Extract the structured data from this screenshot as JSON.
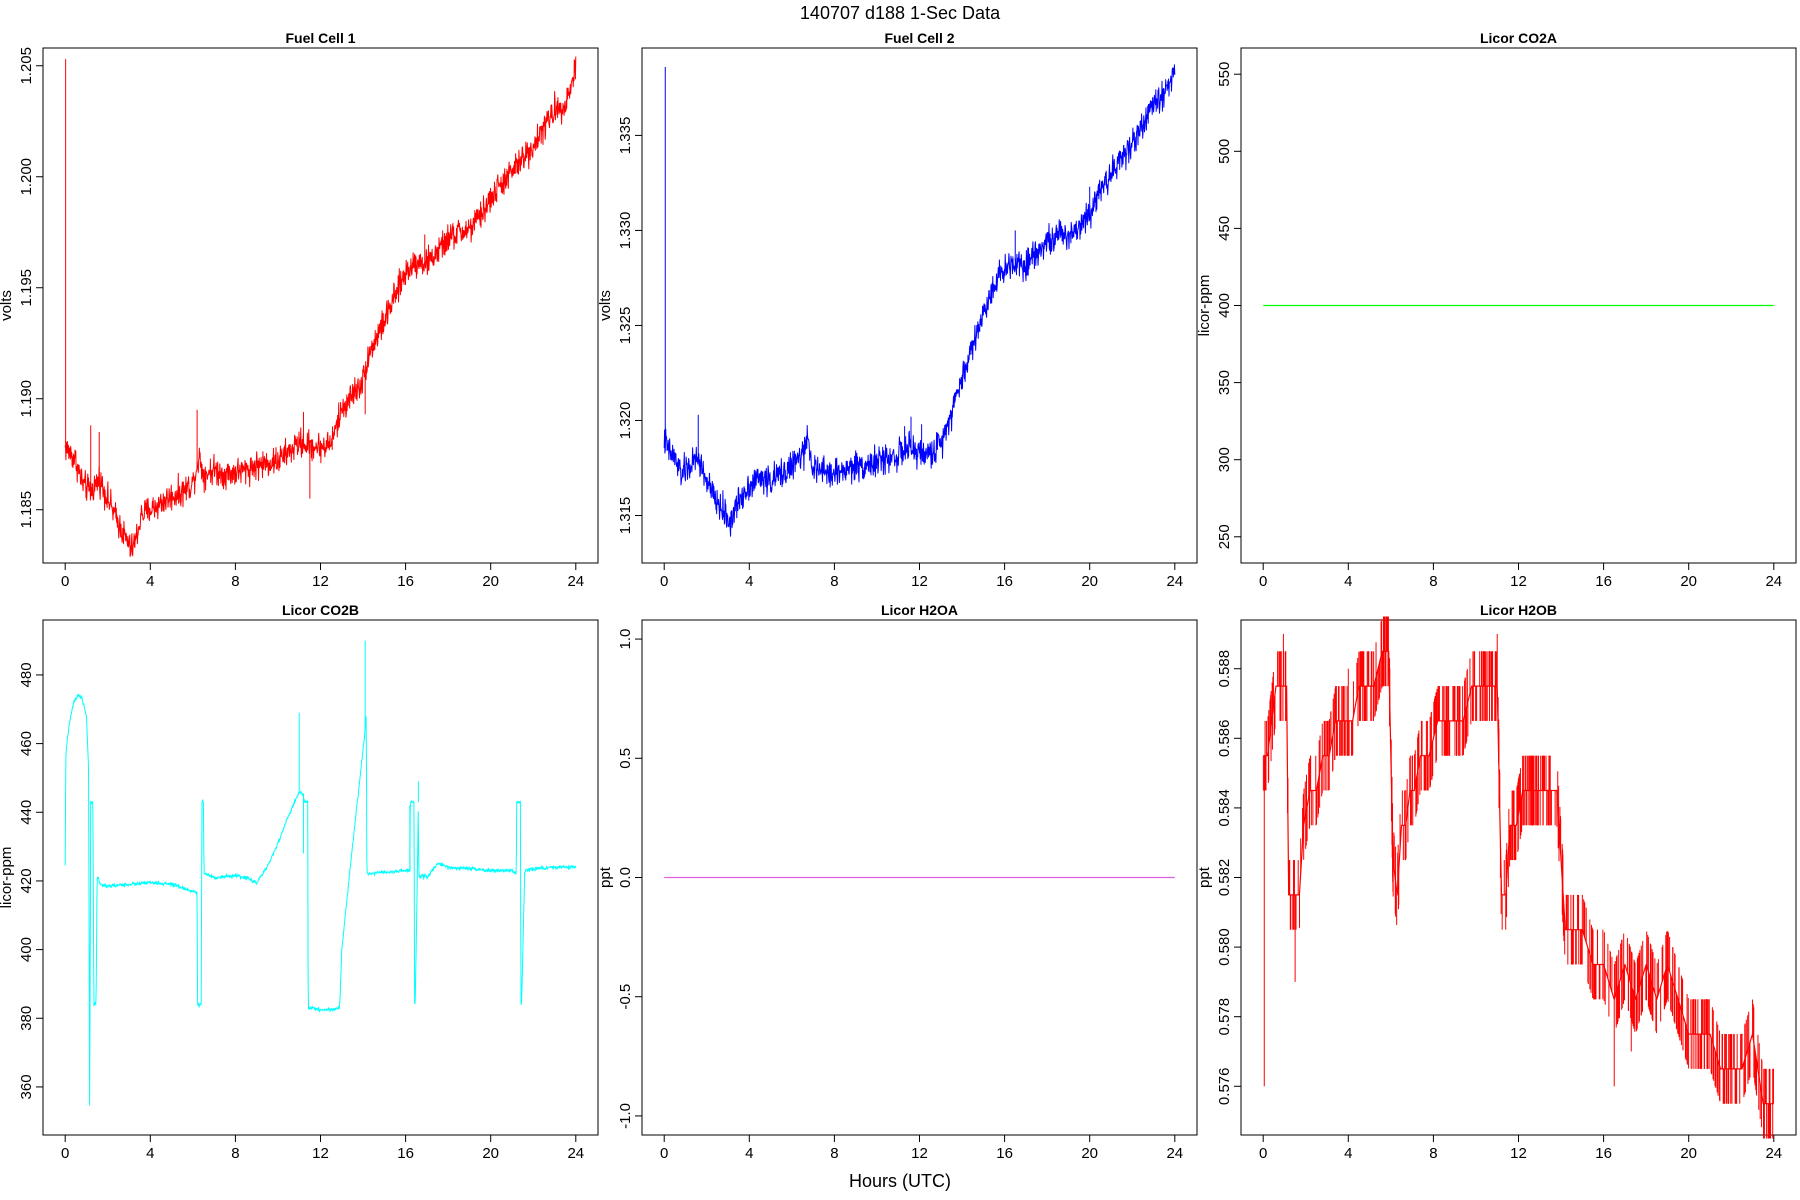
{
  "figure": {
    "title": "140707   d188   1-Sec Data",
    "xlabel": "Hours (UTC)"
  },
  "chart_data": [
    {
      "type": "line",
      "title": "Fuel Cell 1",
      "ylabel": "volts",
      "color": "#ff0000",
      "xlim": [
        0,
        24
      ],
      "xticks": [
        0,
        4,
        8,
        12,
        16,
        20,
        24
      ],
      "ylim": [
        1.1826,
        1.2058
      ],
      "yticks": [
        "1.185",
        "1.190",
        "1.195",
        "1.200",
        "1.205"
      ],
      "noise": 0.00045,
      "spikes": [
        [
          0.02,
          1.2053
        ],
        [
          1.2,
          1.1888
        ],
        [
          1.6,
          1.1885
        ],
        [
          6.2,
          1.1895
        ],
        [
          11.5,
          1.1855
        ],
        [
          11.2,
          1.1894
        ],
        [
          14.1,
          1.1893
        ],
        [
          16.9,
          1.1974
        ],
        [
          21.3,
          1.2001
        ],
        [
          21.8,
          1.2013
        ],
        [
          22.0,
          1.2015
        ]
      ],
      "series": [
        {
          "x": [
            0.0,
            0.2,
            0.5,
            0.8,
            1.2,
            1.6,
            2.0,
            2.4,
            2.8,
            3.1,
            3.3,
            3.6,
            4.0,
            4.5,
            5.0,
            5.5,
            6.0,
            6.3,
            6.5,
            7.0,
            7.5,
            8.0,
            8.5,
            9.0,
            9.5,
            10.0,
            10.5,
            11.0,
            11.5,
            12.0,
            12.5,
            13.0,
            13.5,
            14.0,
            14.2,
            14.5,
            15.0,
            15.5,
            16.0,
            16.5,
            17.0,
            17.5,
            18.0,
            18.5,
            19.0,
            19.5,
            20.0,
            20.5,
            21.0,
            21.5,
            22.0,
            22.5,
            23.0,
            23.5,
            23.8,
            24.0
          ],
          "y": [
            1.1878,
            1.1876,
            1.1872,
            1.1862,
            1.1858,
            1.1864,
            1.1855,
            1.1846,
            1.1838,
            1.1832,
            1.1836,
            1.1848,
            1.185,
            1.1853,
            1.1856,
            1.1858,
            1.1862,
            1.1874,
            1.1866,
            1.1868,
            1.1866,
            1.1867,
            1.1868,
            1.187,
            1.1871,
            1.1872,
            1.1876,
            1.188,
            1.1879,
            1.1878,
            1.188,
            1.1895,
            1.1902,
            1.1908,
            1.1918,
            1.1925,
            1.1935,
            1.1946,
            1.1957,
            1.1962,
            1.1961,
            1.1966,
            1.1972,
            1.1975,
            1.1976,
            1.1982,
            1.199,
            1.1997,
            1.2002,
            1.2008,
            1.2014,
            1.2022,
            1.203,
            1.2033,
            1.2041,
            1.2051
          ]
        }
      ]
    },
    {
      "type": "line",
      "title": "Fuel Cell 2",
      "ylabel": "volts",
      "color": "#0000ff",
      "xlim": [
        0,
        24
      ],
      "xticks": [
        0,
        4,
        8,
        12,
        16,
        20,
        24
      ],
      "ylim": [
        1.3125,
        1.3396
      ],
      "yticks": [
        "1.315",
        "1.320",
        "1.325",
        "1.330",
        "1.335"
      ],
      "noise": 0.00055,
      "spikes": [
        [
          0.05,
          1.3386
        ],
        [
          1.6,
          1.3203
        ],
        [
          11.3,
          1.3197
        ],
        [
          11.6,
          1.3202
        ],
        [
          12.1,
          1.3198
        ],
        [
          16.5,
          1.33
        ],
        [
          20.0,
          1.3323
        ],
        [
          21.6,
          1.3345
        ]
      ],
      "series": [
        {
          "x": [
            0.0,
            0.2,
            0.5,
            0.8,
            1.2,
            1.6,
            2.0,
            2.4,
            2.8,
            3.1,
            3.3,
            3.6,
            4.0,
            4.5,
            5.0,
            5.5,
            6.0,
            6.5,
            6.8,
            7.0,
            7.5,
            8.0,
            8.5,
            9.0,
            9.5,
            10.0,
            10.5,
            11.0,
            11.5,
            12.0,
            12.5,
            13.0,
            13.5,
            14.0,
            14.5,
            15.0,
            15.5,
            16.0,
            16.5,
            17.0,
            17.5,
            18.0,
            18.5,
            19.0,
            19.5,
            20.0,
            20.5,
            21.0,
            21.5,
            22.0,
            22.5,
            23.0,
            23.5,
            24.0
          ],
          "y": [
            1.319,
            1.3184,
            1.318,
            1.3172,
            1.3176,
            1.318,
            1.3168,
            1.3158,
            1.3152,
            1.3146,
            1.3152,
            1.316,
            1.3166,
            1.317,
            1.3168,
            1.3172,
            1.3176,
            1.3182,
            1.319,
            1.3174,
            1.3173,
            1.3172,
            1.3174,
            1.3176,
            1.3177,
            1.3178,
            1.318,
            1.3182,
            1.3185,
            1.3183,
            1.3182,
            1.3188,
            1.3205,
            1.3222,
            1.324,
            1.3256,
            1.3272,
            1.328,
            1.3284,
            1.3282,
            1.329,
            1.3294,
            1.3297,
            1.3298,
            1.3302,
            1.331,
            1.3322,
            1.333,
            1.3338,
            1.3346,
            1.3356,
            1.3366,
            1.3372,
            1.3385
          ]
        }
      ]
    },
    {
      "type": "line",
      "title": "Licor CO2A",
      "ylabel": "licor-ppm",
      "color": "#00ff00",
      "xlim": [
        0,
        24
      ],
      "xticks": [
        0,
        4,
        8,
        12,
        16,
        20,
        24
      ],
      "ylim": [
        233,
        567
      ],
      "yticks": [
        "250",
        "300",
        "350",
        "400",
        "450",
        "500",
        "550"
      ],
      "noise": 0,
      "spikes": [],
      "series": [
        {
          "x": [
            0,
            24
          ],
          "y": [
            400,
            400
          ]
        }
      ]
    },
    {
      "type": "line",
      "title": "Licor CO2B",
      "ylabel": "licor-ppm",
      "color": "#00ffff",
      "xlim": [
        0,
        24
      ],
      "xticks": [
        0,
        4,
        8,
        12,
        16,
        20,
        24
      ],
      "ylim": [
        346,
        496
      ],
      "yticks": [
        "360",
        "380",
        "400",
        "420",
        "440",
        "460",
        "480"
      ],
      "noise": 0.4,
      "spikes": [
        [
          11.0,
          469
        ],
        [
          11.2,
          428
        ],
        [
          14.1,
          490
        ],
        [
          16.6,
          449
        ],
        [
          16.2,
          442
        ]
      ],
      "series": [
        {
          "x": [
            0.0,
            0.02,
            0.04,
            0.2,
            0.4,
            0.6,
            0.8,
            1.0,
            1.1,
            1.15,
            1.2,
            1.22,
            1.25,
            1.3,
            1.35,
            1.4,
            1.42,
            1.45,
            1.5,
            1.55,
            1.6,
            1.62,
            2.0,
            3.0,
            4.0,
            5.0,
            6.0,
            6.2,
            6.22,
            6.25,
            6.4,
            6.42,
            6.45,
            6.5,
            6.52,
            6.6,
            7.0,
            8.0,
            8.5,
            9.0,
            9.5,
            10.0,
            10.5,
            11.0,
            11.2,
            11.22,
            11.25,
            11.4,
            11.42,
            11.45,
            11.6,
            12.0,
            12.5,
            12.9,
            13.0,
            13.5,
            14.0,
            14.15,
            14.18,
            14.2,
            15.0,
            16.0,
            16.2,
            16.22,
            16.25,
            16.4,
            16.42,
            16.45,
            16.55,
            16.6,
            16.62,
            16.65,
            16.8,
            16.85,
            16.9,
            17.0,
            17.5,
            18.0,
            19.0,
            20.0,
            21.0,
            21.2,
            21.22,
            21.25,
            21.4,
            21.42,
            21.45,
            21.6,
            22.0,
            23.0,
            24.0
          ],
          "y": [
            424,
            450,
            458,
            466,
            472,
            474,
            473,
            468,
            452,
            352,
            443,
            443,
            443,
            443,
            384,
            384,
            384,
            384,
            421,
            421,
            420,
            419,
            418.5,
            419,
            419.5,
            419,
            417,
            416.5,
            384,
            384,
            384,
            443,
            443,
            443,
            422,
            422,
            421,
            421.5,
            421,
            419.5,
            424,
            431,
            439,
            446,
            445,
            443,
            443,
            443,
            383,
            383,
            383,
            382.5,
            382.5,
            383,
            400,
            430,
            458,
            468,
            422.5,
            422,
            422.5,
            423,
            423,
            443,
            443,
            443,
            384,
            384,
            420,
            443,
            421,
            421,
            422,
            421,
            422,
            421,
            425,
            424,
            423.5,
            423,
            423,
            422,
            443,
            443,
            443,
            384,
            384,
            423,
            423.5,
            424,
            424
          ]
        }
      ]
    },
    {
      "type": "line",
      "title": "Licor H2OA",
      "ylabel": "ppt",
      "color": "#e060e0",
      "xlim": [
        0,
        24
      ],
      "xticks": [
        0,
        4,
        8,
        12,
        16,
        20,
        24
      ],
      "ylim": [
        -1.08,
        1.08
      ],
      "yticks": [
        "-1.0",
        "-0.5",
        "0.0",
        "0.5",
        "1.0"
      ],
      "noise": 0,
      "spikes": [],
      "series": [
        {
          "x": [
            0,
            24
          ],
          "y": [
            0,
            0
          ]
        }
      ]
    },
    {
      "type": "line",
      "title": "Licor H2OB",
      "ylabel": "ppt",
      "color": "#ff0000",
      "xlim": [
        0,
        24
      ],
      "xticks": [
        0,
        4,
        8,
        12,
        16,
        20,
        24
      ],
      "ylim": [
        0.5746,
        0.5894
      ],
      "yticks": [
        "0.576",
        "0.578",
        "0.580",
        "0.582",
        "0.584",
        "0.586",
        "0.588"
      ],
      "noise": 0,
      "spikes": [
        [
          0.05,
          0.576
        ],
        [
          1.5,
          0.579
        ],
        [
          0.95,
          0.589
        ],
        [
          4.0,
          0.588
        ],
        [
          11.0,
          0.589
        ],
        [
          16.5,
          0.576
        ],
        [
          17.3,
          0.577
        ]
      ],
      "series": [
        {
          "x": [
            0.0,
            0.2,
            0.4,
            0.6,
            0.9,
            1.1,
            1.2,
            1.3,
            1.7,
            1.9,
            2.2,
            2.5,
            2.8,
            3.1,
            3.4,
            3.8,
            4.2,
            4.5,
            4.9,
            5.2,
            5.6,
            5.9,
            6.1,
            6.3,
            6.5,
            6.7,
            6.9,
            7.1,
            7.4,
            7.8,
            8.2,
            8.6,
            9.0,
            9.4,
            9.8,
            10.2,
            10.6,
            11.0,
            11.2,
            11.4,
            11.6,
            11.9,
            12.2,
            12.5,
            12.8,
            13.1,
            13.4,
            13.8,
            14.2,
            14.5,
            15.0,
            15.5,
            16.0,
            16.5,
            17.0,
            17.5,
            18.0,
            18.5,
            19.0,
            19.5,
            20.0,
            20.5,
            21.0,
            21.5,
            22.0,
            22.5,
            23.0,
            23.5,
            24.0
          ],
          "y": [
            0.5855,
            0.5855,
            0.5865,
            0.5875,
            0.5875,
            0.5875,
            0.5815,
            0.5815,
            0.5815,
            0.5835,
            0.5845,
            0.5845,
            0.5855,
            0.5855,
            0.5865,
            0.5865,
            0.5865,
            0.5875,
            0.5875,
            0.5875,
            0.5885,
            0.5885,
            0.5825,
            0.5815,
            0.5835,
            0.5835,
            0.5845,
            0.5845,
            0.5855,
            0.5855,
            0.5865,
            0.5865,
            0.5865,
            0.5865,
            0.5875,
            0.5875,
            0.5875,
            0.5875,
            0.5815,
            0.5815,
            0.5835,
            0.5835,
            0.5845,
            0.5845,
            0.5845,
            0.5845,
            0.5845,
            0.5845,
            0.5805,
            0.5805,
            0.5805,
            0.5795,
            0.5795,
            0.5785,
            0.5795,
            0.5785,
            0.5795,
            0.5785,
            0.5795,
            0.5785,
            0.5775,
            0.5775,
            0.5775,
            0.5765,
            0.5765,
            0.5765,
            0.5775,
            0.5755,
            0.5755
          ]
        }
      ]
    }
  ]
}
